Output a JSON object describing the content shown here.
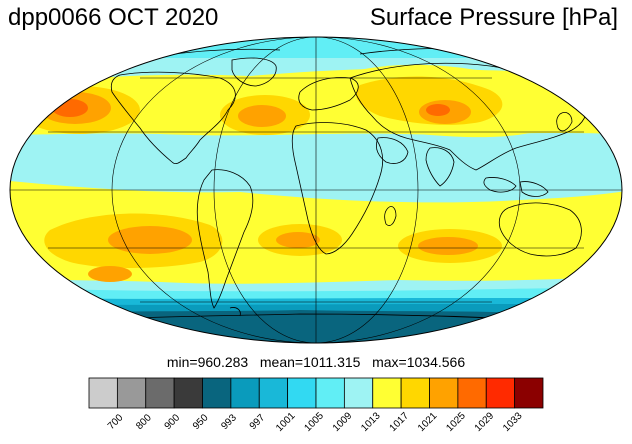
{
  "header": {
    "title_left": "dpp0066 OCT 2020",
    "title_right": "Surface Pressure [hPa]"
  },
  "stats": {
    "min_label": "min=",
    "min": "960.283",
    "mean_label": "mean=",
    "mean": "1011.315",
    "max_label": "max=",
    "max": "1034.566"
  },
  "colorbar": {
    "levels": [
      "700",
      "800",
      "900",
      "950",
      "993",
      "997",
      "1001",
      "1005",
      "1009",
      "1013",
      "1017",
      "1021",
      "1025",
      "1029",
      "1033"
    ],
    "colors": [
      "#cccccc",
      "#999999",
      "#6b6b6b",
      "#3a3a3a",
      "#09657e",
      "#0a9bbc",
      "#19b8d8",
      "#32d9f2",
      "#61eef5",
      "#9ef3f3",
      "#ffff33",
      "#ffd700",
      "#ffa200",
      "#ff6a00",
      "#ff2a00",
      "#8b0000"
    ]
  },
  "map": {
    "projection": "Mollweide",
    "colors": {
      "ocean_low": "#9ef3f3",
      "subtropical_high": "#ffff33",
      "ridge": "#ffd700",
      "core": "#ffa200",
      "peak": "#ff6a00",
      "southern_ring_1": "#61eef5",
      "southern_ring_2": "#19b8d8",
      "southern_ring_3": "#0a9bbc",
      "antarctica": "#09657e",
      "coastline": "#000000",
      "graticule": "#000000"
    }
  }
}
